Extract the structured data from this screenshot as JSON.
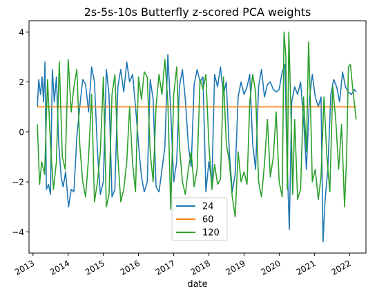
{
  "chart_data": {
    "type": "line",
    "title": "2s-5s-10s Butterfly z-scored PCA weights",
    "xlabel": "date",
    "ylabel": "",
    "xlim": [
      "2012-11-20",
      "2022-06-20"
    ],
    "ylim": [
      -4.85,
      4.45
    ],
    "yticks": [
      -4,
      -2,
      0,
      2,
      4
    ],
    "xticks": [
      "2013",
      "2014",
      "2015",
      "2016",
      "2017",
      "2018",
      "2019",
      "2020",
      "2021",
      "2022"
    ],
    "legend_position": "lower-center",
    "grid": false,
    "series": [
      {
        "name": "24",
        "color": "#1f77b4",
        "points": [
          [
            "2013-02-15",
            1.0
          ],
          [
            "2013-03-01",
            2.1
          ],
          [
            "2013-03-20",
            1.5
          ],
          [
            "2013-04-05",
            2.2
          ],
          [
            "2013-04-20",
            1.2
          ],
          [
            "2013-05-05",
            2.8
          ],
          [
            "2013-05-20",
            -2.3
          ],
          [
            "2013-06-10",
            -2.1
          ],
          [
            "2013-07-01",
            -2.5
          ],
          [
            "2013-07-20",
            2.5
          ],
          [
            "2013-08-10",
            1.2
          ],
          [
            "2013-09-01",
            2.2
          ],
          [
            "2013-09-25",
            -0.5
          ],
          [
            "2013-10-20",
            -1.8
          ],
          [
            "2013-11-10",
            -2.2
          ],
          [
            "2013-12-05",
            -1.6
          ],
          [
            "2014-01-05",
            -3.0
          ],
          [
            "2014-02-01",
            -2.3
          ],
          [
            "2014-03-01",
            -2.4
          ],
          [
            "2014-04-01",
            -0.2
          ],
          [
            "2014-05-01",
            1.0
          ],
          [
            "2014-06-01",
            2.1
          ],
          [
            "2014-07-01",
            1.9
          ],
          [
            "2014-08-01",
            0.8
          ],
          [
            "2014-09-01",
            2.6
          ],
          [
            "2014-10-01",
            2.0
          ],
          [
            "2014-11-01",
            -0.8
          ],
          [
            "2014-12-01",
            -2.5
          ],
          [
            "2015-01-01",
            -2.0
          ],
          [
            "2015-02-01",
            2.5
          ],
          [
            "2015-03-01",
            1.5
          ],
          [
            "2015-04-01",
            -2.6
          ],
          [
            "2015-05-01",
            -2.3
          ],
          [
            "2015-06-01",
            1.8
          ],
          [
            "2015-07-01",
            2.5
          ],
          [
            "2015-08-01",
            1.6
          ],
          [
            "2015-09-01",
            2.8
          ],
          [
            "2015-10-01",
            2.0
          ],
          [
            "2015-11-01",
            2.3
          ],
          [
            "2015-12-01",
            1.0
          ],
          [
            "2016-01-01",
            -0.5
          ],
          [
            "2016-02-01",
            -1.8
          ],
          [
            "2016-03-01",
            -2.4
          ],
          [
            "2016-04-01",
            -2.0
          ],
          [
            "2016-05-01",
            2.1
          ],
          [
            "2016-06-01",
            1.3
          ],
          [
            "2016-07-01",
            -2.2
          ],
          [
            "2016-08-01",
            -2.4
          ],
          [
            "2016-09-01",
            -1.5
          ],
          [
            "2016-10-01",
            -0.6
          ],
          [
            "2016-11-01",
            3.1
          ],
          [
            "2016-12-01",
            0.8
          ],
          [
            "2017-01-01",
            -2.0
          ],
          [
            "2017-02-01",
            -1.2
          ],
          [
            "2017-03-01",
            1.8
          ],
          [
            "2017-04-01",
            2.5
          ],
          [
            "2017-05-01",
            1.3
          ],
          [
            "2017-06-01",
            -0.5
          ],
          [
            "2017-07-01",
            -1.4
          ],
          [
            "2017-08-01",
            1.9
          ],
          [
            "2017-09-01",
            2.5
          ],
          [
            "2017-10-01",
            2.0
          ],
          [
            "2017-11-01",
            2.2
          ],
          [
            "2017-12-01",
            -2.4
          ],
          [
            "2018-01-01",
            -1.2
          ],
          [
            "2018-02-01",
            -2.0
          ],
          [
            "2018-03-01",
            2.3
          ],
          [
            "2018-04-01",
            1.8
          ],
          [
            "2018-05-01",
            2.6
          ],
          [
            "2018-06-01",
            1.5
          ],
          [
            "2018-07-01",
            2.0
          ],
          [
            "2018-08-01",
            -0.8
          ],
          [
            "2018-09-01",
            -2.4
          ],
          [
            "2018-10-01",
            -1.7
          ],
          [
            "2018-11-01",
            1.4
          ],
          [
            "2018-12-01",
            2.0
          ],
          [
            "2019-01-01",
            1.5
          ],
          [
            "2019-02-01",
            1.8
          ],
          [
            "2019-03-01",
            2.3
          ],
          [
            "2019-04-01",
            -0.5
          ],
          [
            "2019-05-01",
            -1.5
          ],
          [
            "2019-06-01",
            1.8
          ],
          [
            "2019-07-01",
            2.5
          ],
          [
            "2019-08-01",
            1.4
          ],
          [
            "2019-09-01",
            1.9
          ],
          [
            "2019-10-01",
            2.0
          ],
          [
            "2019-11-01",
            1.7
          ],
          [
            "2019-12-01",
            1.6
          ],
          [
            "2020-01-01",
            1.7
          ],
          [
            "2020-02-01",
            2.4
          ],
          [
            "2020-03-01",
            2.7
          ],
          [
            "2020-03-20",
            -0.8
          ],
          [
            "2020-04-15",
            -3.9
          ],
          [
            "2020-05-10",
            1.2
          ],
          [
            "2020-06-10",
            1.8
          ],
          [
            "2020-07-10",
            1.5
          ],
          [
            "2020-08-10",
            2.0
          ],
          [
            "2020-09-10",
            0.5
          ],
          [
            "2020-10-10",
            -1.5
          ],
          [
            "2020-11-10",
            1.3
          ],
          [
            "2020-12-10",
            2.3
          ],
          [
            "2021-01-10",
            1.4
          ],
          [
            "2021-02-10",
            1.0
          ],
          [
            "2021-03-10",
            1.4
          ],
          [
            "2021-04-01",
            -4.4
          ],
          [
            "2021-04-20",
            -2.8
          ],
          [
            "2021-05-20",
            -1.5
          ],
          [
            "2021-06-20",
            1.5
          ],
          [
            "2021-07-20",
            2.1
          ],
          [
            "2021-08-20",
            1.8
          ],
          [
            "2021-09-20",
            1.2
          ],
          [
            "2021-10-20",
            2.4
          ],
          [
            "2021-11-20",
            1.8
          ],
          [
            "2021-12-20",
            1.6
          ],
          [
            "2022-01-20",
            1.5
          ],
          [
            "2022-02-20",
            1.7
          ],
          [
            "2022-03-10",
            1.6
          ]
        ]
      },
      {
        "name": "60",
        "color": "#ff7f0e",
        "points": [
          [
            "2013-02-15",
            1.0
          ],
          [
            "2022-03-10",
            1.0
          ]
        ]
      },
      {
        "name": "120",
        "color": "#2ca02c",
        "points": [
          [
            "2013-02-15",
            0.3
          ],
          [
            "2013-03-10",
            -2.1
          ],
          [
            "2013-04-01",
            -1.2
          ],
          [
            "2013-05-01",
            -1.7
          ],
          [
            "2013-06-01",
            2.1
          ],
          [
            "2013-07-01",
            -0.5
          ],
          [
            "2013-08-01",
            -2.3
          ],
          [
            "2013-09-01",
            -1.2
          ],
          [
            "2013-10-01",
            2.8
          ],
          [
            "2013-11-01",
            -1.0
          ],
          [
            "2013-12-01",
            -1.5
          ],
          [
            "2014-01-01",
            2.9
          ],
          [
            "2014-02-01",
            0.8
          ],
          [
            "2014-03-01",
            1.8
          ],
          [
            "2014-04-01",
            2.5
          ],
          [
            "2014-05-01",
            -0.5
          ],
          [
            "2014-06-01",
            -2.0
          ],
          [
            "2014-07-01",
            -2.6
          ],
          [
            "2014-08-01",
            -1.0
          ],
          [
            "2014-09-01",
            1.5
          ],
          [
            "2014-10-01",
            -2.8
          ],
          [
            "2014-11-01",
            -2.0
          ],
          [
            "2014-12-01",
            -0.8
          ],
          [
            "2015-01-01",
            2.2
          ],
          [
            "2015-02-01",
            -3.0
          ],
          [
            "2015-03-01",
            -2.5
          ],
          [
            "2015-04-01",
            1.5
          ],
          [
            "2015-05-01",
            2.3
          ],
          [
            "2015-06-01",
            -1.0
          ],
          [
            "2015-07-01",
            -2.8
          ],
          [
            "2015-08-01",
            -2.3
          ],
          [
            "2015-09-01",
            -1.2
          ],
          [
            "2015-10-01",
            1.0
          ],
          [
            "2015-11-01",
            -1.3
          ],
          [
            "2015-12-01",
            -2.4
          ],
          [
            "2016-01-01",
            2.2
          ],
          [
            "2016-02-01",
            1.3
          ],
          [
            "2016-03-01",
            2.4
          ],
          [
            "2016-04-01",
            2.2
          ],
          [
            "2016-05-01",
            -0.8
          ],
          [
            "2016-06-01",
            -2.0
          ],
          [
            "2016-07-01",
            1.0
          ],
          [
            "2016-08-01",
            2.3
          ],
          [
            "2016-09-01",
            1.5
          ],
          [
            "2016-10-01",
            2.9
          ],
          [
            "2016-11-01",
            1.2
          ],
          [
            "2016-12-01",
            -3.1
          ],
          [
            "2017-01-01",
            1.5
          ],
          [
            "2017-02-01",
            2.6
          ],
          [
            "2017-03-01",
            -0.5
          ],
          [
            "2017-04-01",
            -2.0
          ],
          [
            "2017-05-01",
            -2.5
          ],
          [
            "2017-06-01",
            -1.5
          ],
          [
            "2017-07-01",
            -0.8
          ],
          [
            "2017-08-01",
            -2.2
          ],
          [
            "2017-09-01",
            -1.5
          ],
          [
            "2017-10-01",
            2.1
          ],
          [
            "2017-11-01",
            1.7
          ],
          [
            "2017-12-01",
            2.3
          ],
          [
            "2018-01-01",
            -0.5
          ],
          [
            "2018-02-01",
            -2.3
          ],
          [
            "2018-03-01",
            -1.3
          ],
          [
            "2018-04-01",
            -2.1
          ],
          [
            "2018-05-01",
            -1.9
          ],
          [
            "2018-06-01",
            2.2
          ],
          [
            "2018-07-01",
            -0.5
          ],
          [
            "2018-08-01",
            -1.2
          ],
          [
            "2018-09-01",
            -2.6
          ],
          [
            "2018-10-01",
            -3.4
          ],
          [
            "2018-11-01",
            -0.8
          ],
          [
            "2018-12-01",
            -2.0
          ],
          [
            "2019-01-01",
            -1.6
          ],
          [
            "2019-02-01",
            -2.1
          ],
          [
            "2019-03-01",
            1.2
          ],
          [
            "2019-04-01",
            2.3
          ],
          [
            "2019-05-01",
            1.6
          ],
          [
            "2019-06-01",
            -2.0
          ],
          [
            "2019-07-01",
            -2.6
          ],
          [
            "2019-08-01",
            -1.3
          ],
          [
            "2019-09-01",
            0.5
          ],
          [
            "2019-10-01",
            -1.8
          ],
          [
            "2019-11-01",
            -1.0
          ],
          [
            "2019-12-01",
            0.8
          ],
          [
            "2020-01-01",
            -2.0
          ],
          [
            "2020-02-01",
            -2.6
          ],
          [
            "2020-02-20",
            4.0
          ],
          [
            "2020-03-10",
            3.0
          ],
          [
            "2020-03-25",
            -2.3
          ],
          [
            "2020-04-10",
            4.0
          ],
          [
            "2020-04-30",
            1.1
          ],
          [
            "2020-05-20",
            -2.5
          ],
          [
            "2020-06-10",
            0.5
          ],
          [
            "2020-07-10",
            -2.7
          ],
          [
            "2020-08-10",
            -2.3
          ],
          [
            "2020-09-10",
            1.4
          ],
          [
            "2020-10-10",
            -0.8
          ],
          [
            "2020-11-01",
            3.6
          ],
          [
            "2020-11-20",
            1.3
          ],
          [
            "2020-12-10",
            -2.0
          ],
          [
            "2021-01-10",
            -1.5
          ],
          [
            "2021-02-10",
            -2.7
          ],
          [
            "2021-03-10",
            -1.8
          ],
          [
            "2021-04-10",
            1.4
          ],
          [
            "2021-05-10",
            -1.0
          ],
          [
            "2021-06-10",
            -2.4
          ],
          [
            "2021-07-10",
            1.8
          ],
          [
            "2021-08-10",
            0.5
          ],
          [
            "2021-09-10",
            -1.5
          ],
          [
            "2021-10-10",
            0.3
          ],
          [
            "2021-11-10",
            -3.0
          ],
          [
            "2021-12-01",
            -1.0
          ],
          [
            "2021-12-20",
            2.6
          ],
          [
            "2022-01-10",
            2.7
          ],
          [
            "2022-02-01",
            1.8
          ],
          [
            "2022-03-10",
            0.5
          ]
        ]
      }
    ]
  }
}
